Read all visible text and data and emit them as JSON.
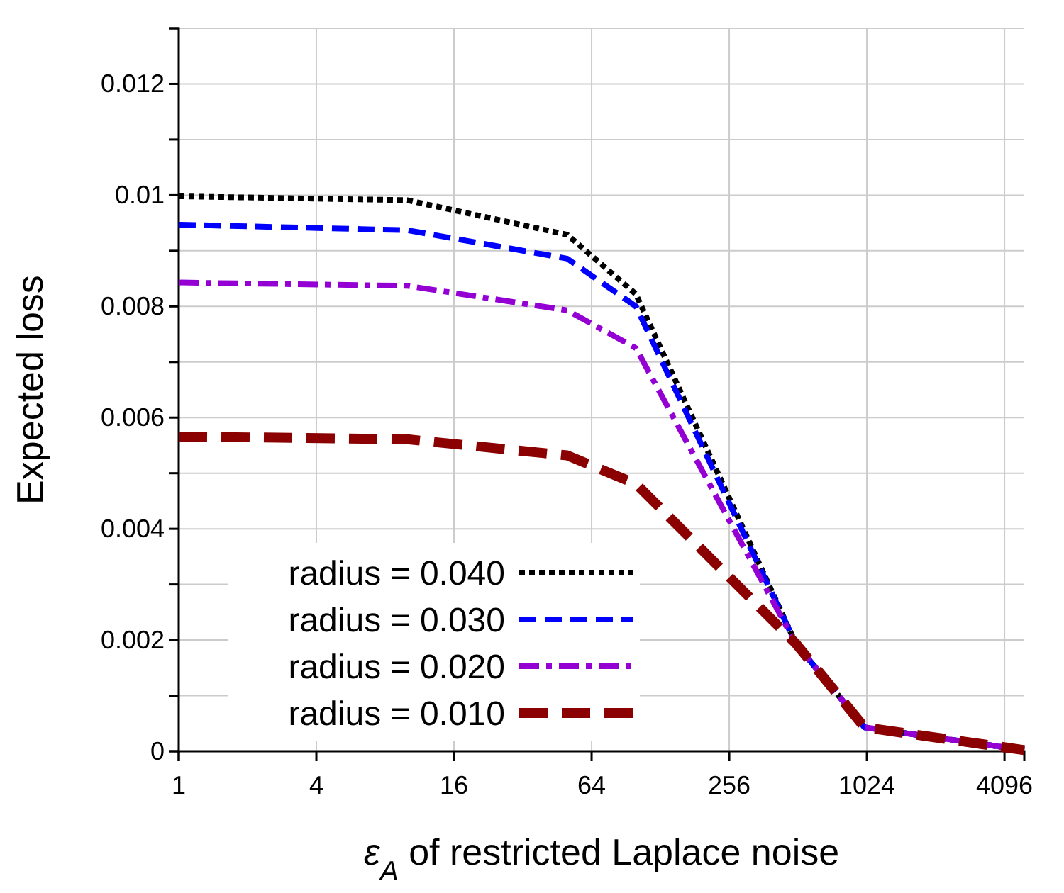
{
  "chart_data": {
    "type": "line",
    "xlabel": "ε$_{A}$ of restricted Laplace noise",
    "ylabel": "Expected loss",
    "x": [
      1,
      10,
      50,
      100,
      500,
      1000,
      5000
    ],
    "series": [
      {
        "name": "radius = 0.040",
        "color": "#000000",
        "line_style": "dotted",
        "values": [
          0.00998,
          0.00991,
          0.00929,
          0.00822,
          0.00194,
          0.00043,
          2e-05
        ]
      },
      {
        "name": "radius = 0.030",
        "color": "#0000ff",
        "line_style": "dashed",
        "values": [
          0.00947,
          0.00937,
          0.00886,
          0.008,
          0.00194,
          0.00043,
          2e-05
        ]
      },
      {
        "name": "radius = 0.020",
        "color": "#9400d3",
        "line_style": "dashed",
        "values": [
          0.00843,
          0.00837,
          0.00793,
          0.00725,
          0.00194,
          0.00043,
          2e-05
        ]
      },
      {
        "name": "radius = 0.010",
        "color": "#8b0000",
        "line_style": "dashed",
        "values": [
          0.00566,
          0.00561,
          0.00532,
          0.00481,
          0.00194,
          0.00043,
          2e-05
        ]
      }
    ],
    "log": "x",
    "xlim": [
      1,
      5000
    ],
    "xticks": [
      1,
      4,
      16,
      64,
      256,
      1024,
      4096
    ],
    "ylim": [
      0,
      0.013
    ],
    "yticks": [
      0,
      {
        "value": 0.001,
        "label": null
      },
      0.002,
      {
        "value": 0.003,
        "label": null
      },
      0.004,
      {
        "value": 0.005,
        "label": null
      },
      0.006,
      {
        "value": 0.007,
        "label": null
      },
      0.008,
      {
        "value": 0.009,
        "label": null
      },
      0.01,
      {
        "value": 0.011,
        "label": null
      },
      0.012,
      {
        "value": 0.013,
        "label": null
      }
    ],
    "grid": true,
    "legend": "bottom left"
  }
}
